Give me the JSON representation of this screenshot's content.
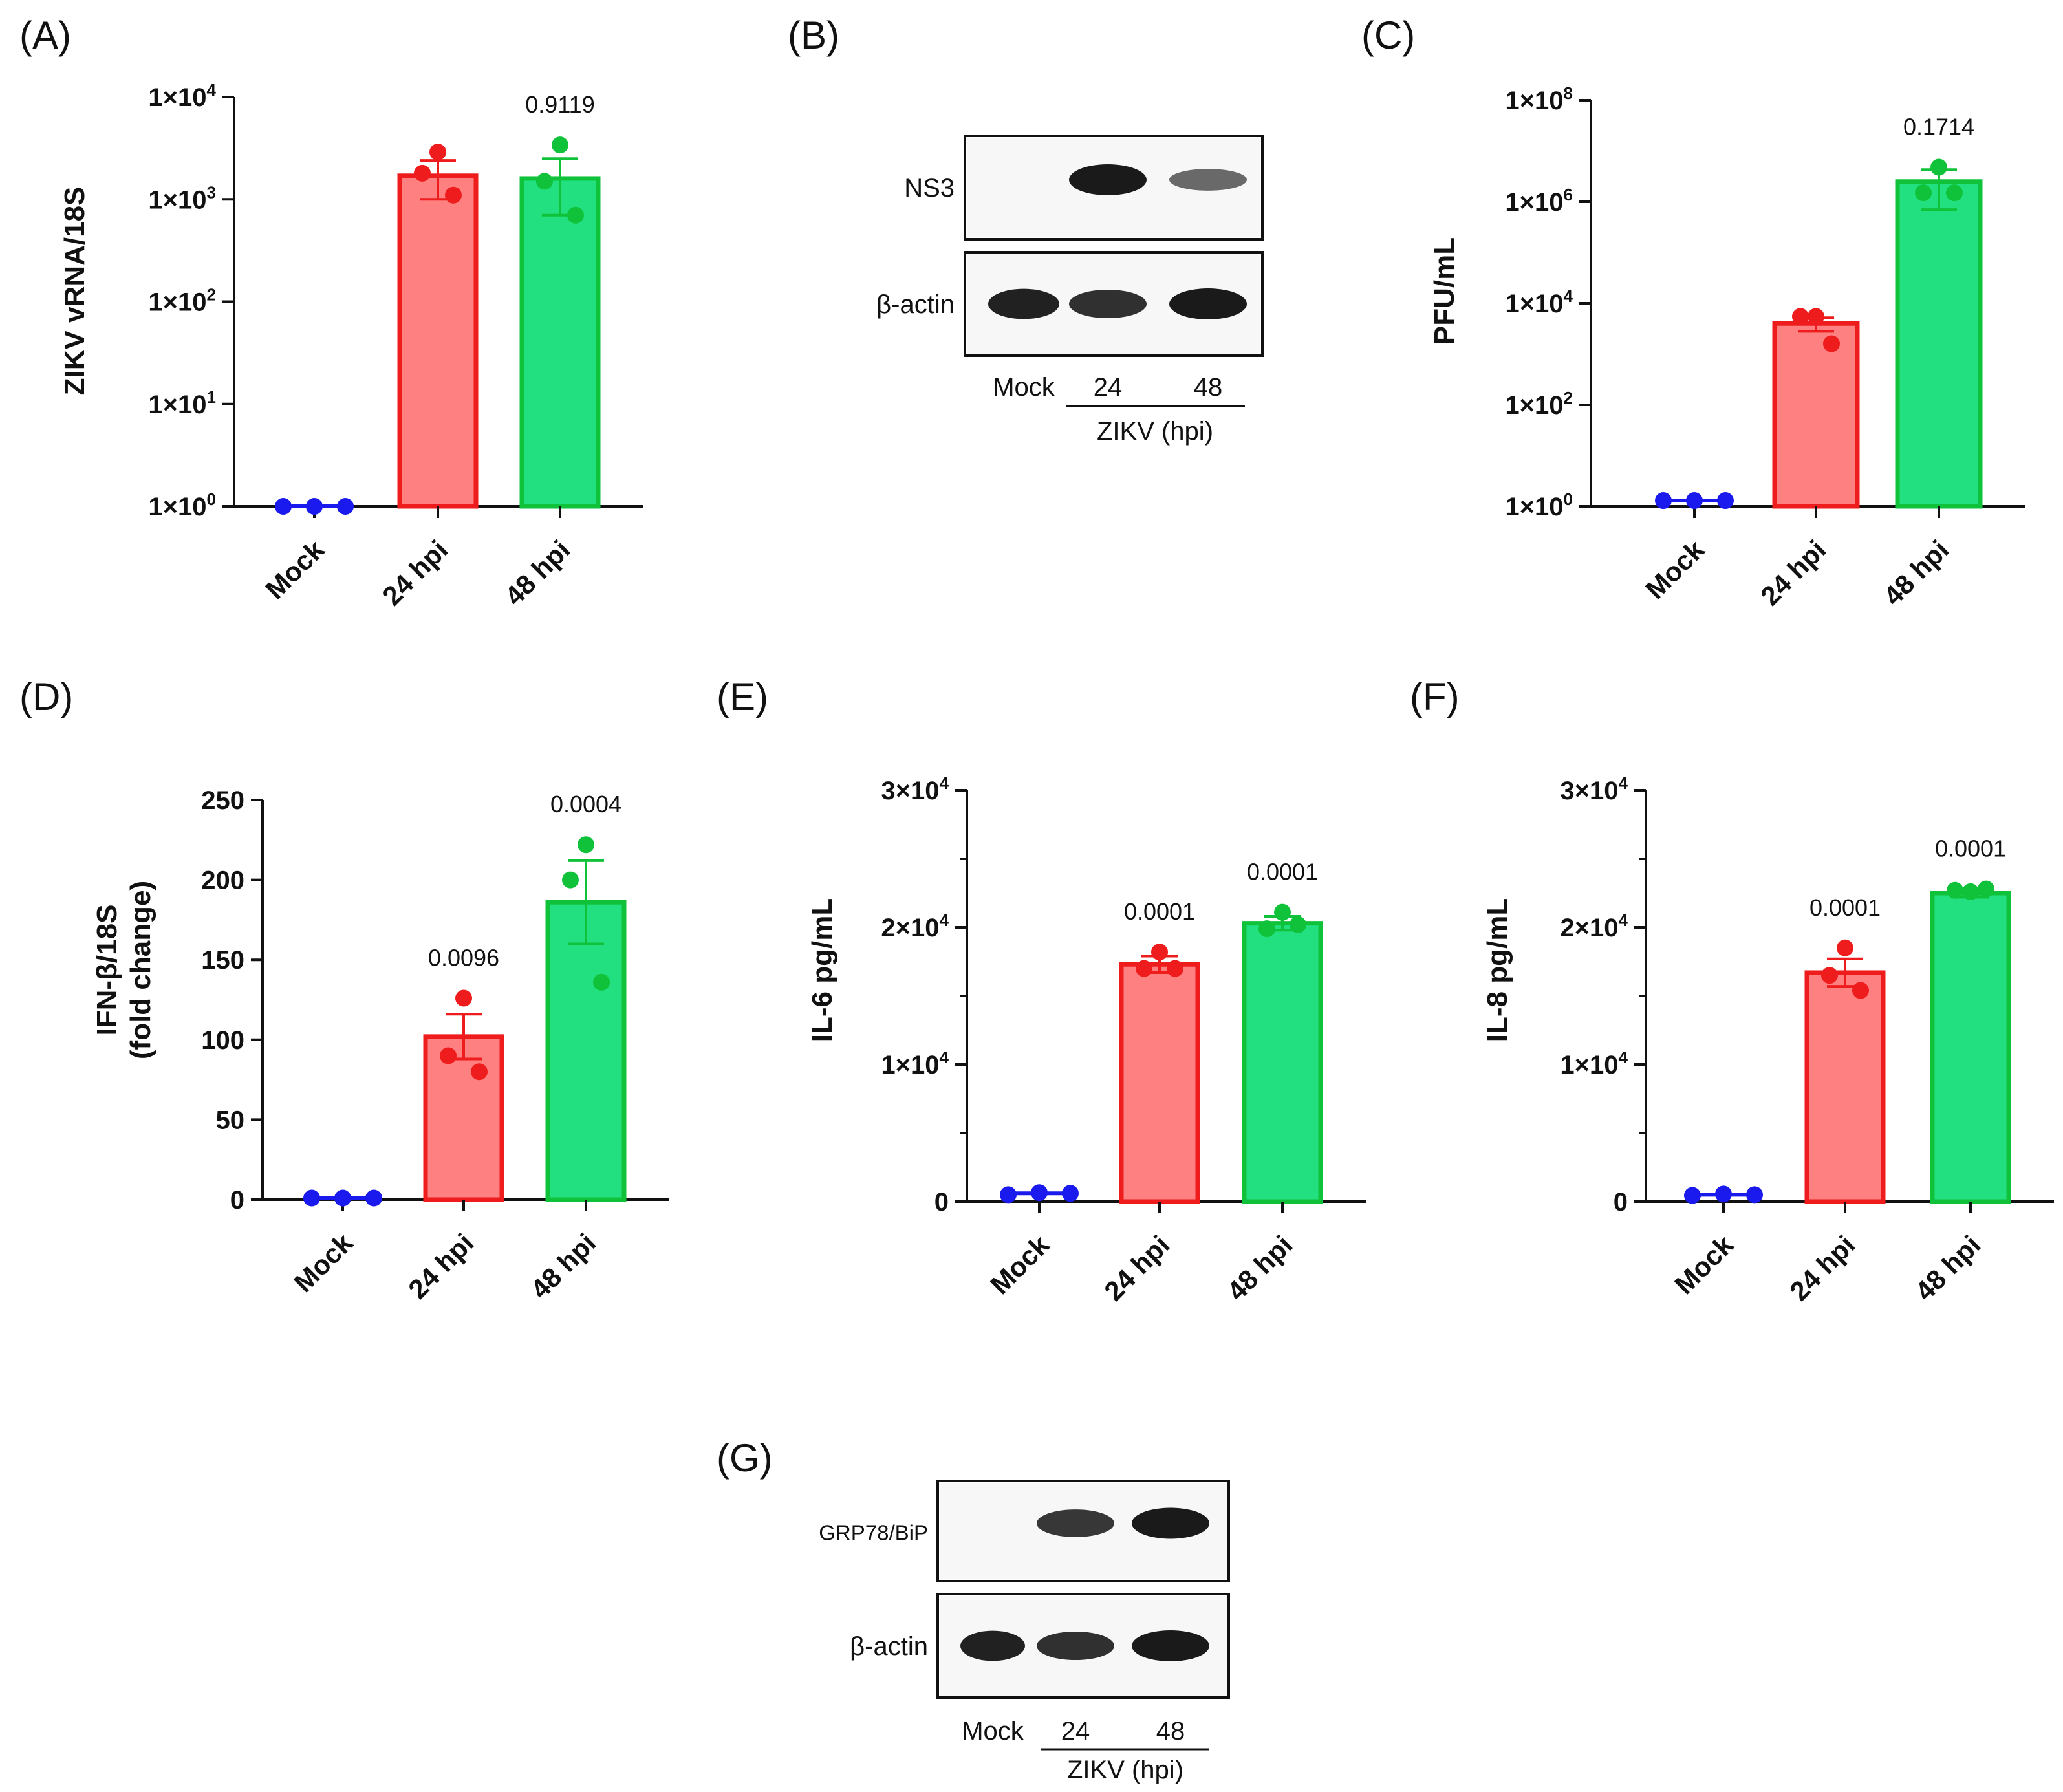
{
  "colors": {
    "mock": "#1a1aee",
    "h24": "#ee1c1c",
    "h24_fill": "#ff8080",
    "h48": "#10c23a",
    "h48_fill": "#22e07f",
    "axis": "#111111"
  },
  "chart_data": [
    {
      "id": "A",
      "panel_label": "(A)",
      "type": "bar",
      "scale": "log",
      "ylabel": "ZIKV vRNA/18S",
      "ylim": [
        1,
        10000
      ],
      "yticks": [
        {
          "base": "1×10",
          "exp": "0"
        },
        {
          "base": "1×10",
          "exp": "1"
        },
        {
          "base": "1×10",
          "exp": "2"
        },
        {
          "base": "1×10",
          "exp": "3"
        },
        {
          "base": "1×10",
          "exp": "4"
        }
      ],
      "categories": [
        "Mock",
        "24 hpi",
        "48 hpi"
      ],
      "means": [
        1,
        1700,
        1600
      ],
      "sem": [
        0,
        700,
        900
      ],
      "points": [
        [
          1,
          1,
          1
        ],
        [
          2900,
          1800,
          1100
        ],
        [
          3400,
          1500,
          700
        ]
      ],
      "pvalues": [
        "",
        "",
        "0.9119"
      ]
    },
    {
      "id": "C",
      "panel_label": "(C)",
      "type": "bar",
      "scale": "log",
      "ylabel": "PFU/mL",
      "ylim": [
        1,
        100000000
      ],
      "yticks": [
        {
          "base": "1×10",
          "exp": "0"
        },
        {
          "base": "1×10",
          "exp": "2"
        },
        {
          "base": "1×10",
          "exp": "4"
        },
        {
          "base": "1×10",
          "exp": "6"
        },
        {
          "base": "1×10",
          "exp": "8"
        }
      ],
      "categories": [
        "Mock",
        "24 hpi",
        "48 hpi"
      ],
      "means": [
        1.3,
        4000,
        2500000
      ],
      "sem": [
        0.1,
        1200,
        1800000
      ],
      "points": [
        [
          1.3,
          1.3,
          1.3
        ],
        [
          5500,
          5500,
          1600
        ],
        [
          4800000,
          1500000,
          1500000
        ]
      ],
      "pvalues": [
        "",
        "",
        "0.1714"
      ]
    },
    {
      "id": "D",
      "panel_label": "(D)",
      "type": "bar",
      "scale": "linear",
      "ylabel": "IFN-β/18S",
      "ylabel2": "(fold change)",
      "ylim": [
        0,
        250
      ],
      "yticks": [
        {
          "base": "0"
        },
        {
          "base": "50"
        },
        {
          "base": "100"
        },
        {
          "base": "150"
        },
        {
          "base": "200"
        },
        {
          "base": "250"
        }
      ],
      "ytick_values": [
        0,
        50,
        100,
        150,
        200,
        250
      ],
      "categories": [
        "Mock",
        "24 hpi",
        "48 hpi"
      ],
      "means": [
        1,
        102,
        186
      ],
      "sem": [
        0,
        14,
        26
      ],
      "points": [
        [
          1,
          1,
          1
        ],
        [
          126,
          90,
          80
        ],
        [
          222,
          200,
          136
        ]
      ],
      "pvalues": [
        "",
        "0.0096",
        "0.0004"
      ]
    },
    {
      "id": "E",
      "panel_label": "(E)",
      "type": "bar",
      "scale": "linear",
      "ylabel": "IL-6 pg/mL",
      "ylim": [
        0,
        30000
      ],
      "yticks": [
        {
          "base": "0"
        },
        {
          "base": "1×10",
          "exp": "4"
        },
        {
          "base": "2×10",
          "exp": "4"
        },
        {
          "base": "3×10",
          "exp": "4"
        }
      ],
      "ytick_values": [
        0,
        10000,
        20000,
        30000
      ],
      "categories": [
        "Mock",
        "24 hpi",
        "48 hpi"
      ],
      "means": [
        600,
        17300,
        20300
      ],
      "sem": [
        100,
        600,
        500
      ],
      "points": [
        [
          500,
          650,
          600
        ],
        [
          18200,
          17000,
          17000
        ],
        [
          21100,
          19900,
          20200
        ]
      ],
      "pvalues": [
        "",
        "0.0001",
        "0.0001"
      ]
    },
    {
      "id": "F",
      "panel_label": "(F)",
      "type": "bar",
      "scale": "linear",
      "ylabel": "IL-8 pg/mL",
      "ylim": [
        0,
        30000
      ],
      "yticks": [
        {
          "base": "0"
        },
        {
          "base": "1×10",
          "exp": "4"
        },
        {
          "base": "2×10",
          "exp": "4"
        },
        {
          "base": "3×10",
          "exp": "4"
        }
      ],
      "ytick_values": [
        0,
        10000,
        20000,
        30000
      ],
      "categories": [
        "Mock",
        "24 hpi",
        "48 hpi"
      ],
      "means": [
        500,
        16700,
        22500
      ],
      "sem": [
        100,
        1000,
        300
      ],
      "points": [
        [
          450,
          550,
          500
        ],
        [
          18500,
          16500,
          15400
        ],
        [
          22600,
          22700,
          22800
        ]
      ],
      "pvalues": [
        "",
        "0.0001",
        "0.0001"
      ]
    }
  ],
  "blots": [
    {
      "id": "B",
      "panel_label": "(B)",
      "rows": [
        {
          "label": "NS3",
          "intensity": [
            0,
            1.0,
            0.45
          ]
        },
        {
          "label": "β-actin",
          "intensity": [
            0.95,
            0.85,
            1.0
          ]
        }
      ],
      "lanes": [
        "Mock",
        "24",
        "48"
      ],
      "group_label": "ZIKV (hpi)"
    },
    {
      "id": "G",
      "panel_label": "(G)",
      "rows": [
        {
          "label": "GRP78/BiP",
          "intensity": [
            0,
            0.8,
            1.0
          ]
        },
        {
          "label": "β-actin",
          "intensity": [
            0.95,
            0.85,
            1.0
          ]
        }
      ],
      "lanes": [
        "Mock",
        "24",
        "48"
      ],
      "group_label": "ZIKV (hpi)"
    }
  ]
}
